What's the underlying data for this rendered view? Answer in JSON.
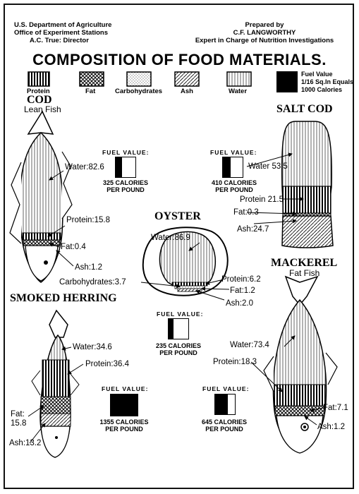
{
  "header": {
    "left": [
      "U.S. Department of Agriculture",
      "Office of Experiment Stations",
      "A.C. True: Director"
    ],
    "right": [
      "Prepared by",
      "C.F. LANGWORTHY",
      "Expert in Charge of Nutrition Investigations"
    ]
  },
  "title": "COMPOSITION OF FOOD MATERIALS.",
  "legend": {
    "items": [
      "Protein",
      "Fat",
      "Carbohydrates",
      "Ash",
      "Water"
    ],
    "fuel_note": [
      "Fuel Value",
      "1/16 Sq.In Equals",
      "1000 Calories"
    ]
  },
  "fuel_value_title": "FUEL VALUE:",
  "calories_unit": "CALORIES",
  "per_pound": "PER POUND",
  "foods": {
    "cod": {
      "name": "COD",
      "subtitle": "Lean Fish",
      "water": "Water:82.6",
      "protein": "Protein:15.8",
      "fat": "Fat:0.4",
      "ash": "Ash:1.2",
      "calories": "325",
      "fill_fraction": 0.33
    },
    "salt_cod": {
      "name": "SALT COD",
      "water": "Water 53.5",
      "protein": "Protein 21.5",
      "fat": "Fat:0.3",
      "ash": "Ash:24.7",
      "calories": "410",
      "fill_fraction": 0.41
    },
    "oyster": {
      "name": "OYSTER",
      "water": "Water:86.9",
      "protein": "Protein:6.2",
      "fat": "Fat:1.2",
      "ash": "Ash:2.0",
      "carbohydrates": "Carbohydrates:3.7",
      "calories": "235",
      "fill_fraction": 0.24
    },
    "mackerel": {
      "name": "MACKEREL",
      "subtitle": "Fat Fish",
      "water": "Water:73.4",
      "protein": "Protein:18.3",
      "fat": "Fat:7.1",
      "ash": "Ash:1.2",
      "calories": "645",
      "fill_fraction": 0.65
    },
    "smoked_herring": {
      "name": "SMOKED HERRING",
      "water": "Water:34.6",
      "protein": "Protein:36.4",
      "fat": "Fat:",
      "fat_value": "15.8",
      "ash": "Ash:13.2",
      "calories": "1355",
      "fill_fraction": 1.0
    }
  }
}
